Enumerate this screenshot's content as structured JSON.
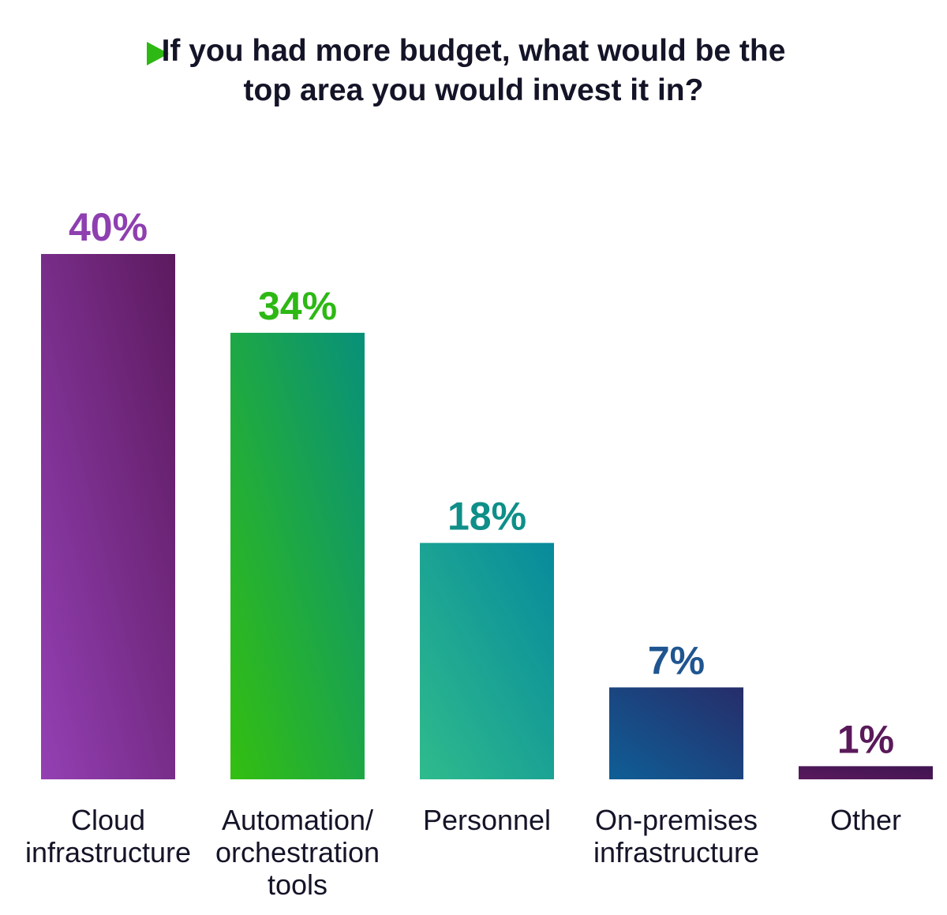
{
  "chart_data": {
    "type": "bar",
    "title": "If you had more budget, what would be the top area you would invest it in?",
    "categories": [
      "Cloud infrastructure",
      "Automation/ orchestration tools",
      "Personnel",
      "On-premises infrastructure",
      "Other"
    ],
    "values": [
      40,
      34,
      18,
      7,
      1
    ],
    "value_labels": [
      "40%",
      "34%",
      "18%",
      "7%",
      "1%"
    ],
    "colors": [
      [
        "#9440b4",
        "#5c1a5e"
      ],
      [
        "#33bf10",
        "#08907a"
      ],
      [
        "#2fbb8c",
        "#078a9c"
      ],
      [
        "#0f5e96",
        "#262d6a"
      ],
      [
        "#5a1a5e",
        "#3e1450"
      ]
    ],
    "label_colors": [
      "#8e3fb0",
      "#2db814",
      "#0e8f88",
      "#1f5590",
      "#5a1a5a"
    ],
    "ylim": [
      0,
      40
    ]
  }
}
